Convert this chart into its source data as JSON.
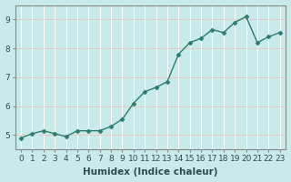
{
  "x": [
    0,
    1,
    2,
    3,
    4,
    5,
    6,
    7,
    8,
    9,
    10,
    11,
    12,
    13,
    14,
    15,
    16,
    17,
    18,
    19,
    20,
    21,
    22,
    23
  ],
  "y": [
    4.9,
    5.05,
    5.15,
    5.05,
    4.95,
    5.15,
    5.15,
    5.15,
    5.3,
    5.55,
    6.1,
    6.5,
    6.65,
    6.85,
    7.8,
    8.2,
    8.35,
    8.65,
    8.55,
    8.9,
    9.1,
    8.2,
    8.4,
    8.55
  ],
  "line_color": "#2d7d6d",
  "marker": "D",
  "markersize": 2.5,
  "linewidth": 1.0,
  "linestyle": "-",
  "xlabel": "Humidex (Indice chaleur)",
  "xlim": [
    -0.5,
    23.5
  ],
  "ylim": [
    4.5,
    9.5
  ],
  "yticks": [
    5,
    6,
    7,
    8,
    9
  ],
  "xticks": [
    0,
    1,
    2,
    3,
    4,
    5,
    6,
    7,
    8,
    9,
    10,
    11,
    12,
    13,
    14,
    15,
    16,
    17,
    18,
    19,
    20,
    21,
    22,
    23
  ],
  "bg_color": "#c8eaea",
  "grid_color_h": "#e8c8c8",
  "grid_color_v": "#ffffff",
  "tick_label_fontsize": 6.5,
  "xlabel_fontsize": 7.5,
  "spine_color": "#888888"
}
